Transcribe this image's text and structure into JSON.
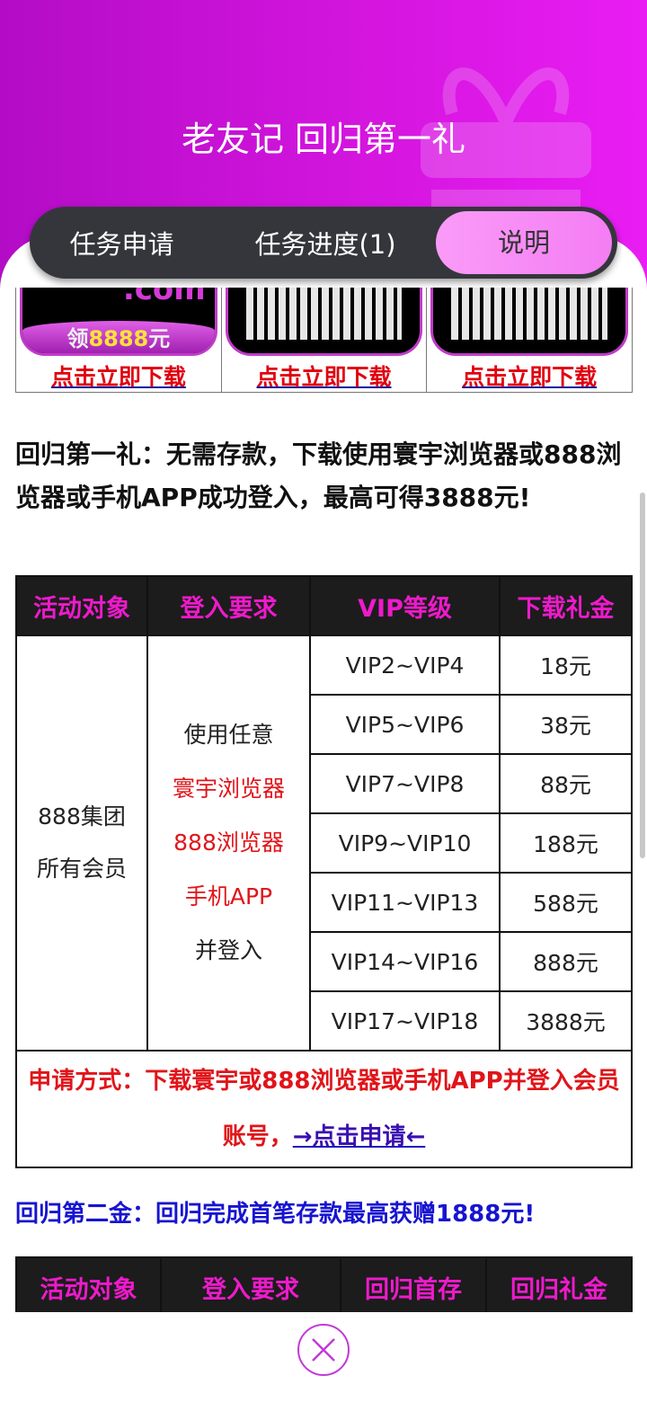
{
  "header": {
    "title": "老友记 回归第一礼"
  },
  "tabs": [
    {
      "label": "任务申请"
    },
    {
      "label": "任务进度(1)"
    },
    {
      "label": "说明",
      "active": true
    }
  ],
  "downloads": [
    {
      "label": "点击立即下载",
      "image_text": "领8888元",
      "image_top": ".com"
    },
    {
      "label": "点击立即下载"
    },
    {
      "label": "点击立即下载"
    }
  ],
  "intro": "回归第一礼：无需存款，下载使用寰宇浏览器或888浏览器或手机APP成功登入，最高可得3888元!",
  "table1": {
    "headers": [
      "活动对象",
      "登入要求",
      "VIP等级",
      "下载礼金"
    ],
    "target": [
      "888集团",
      "所有会员"
    ],
    "requirement": [
      "使用任意",
      "寰宇浏览器",
      "888浏览器",
      "手机APP",
      "并登入"
    ],
    "rows": [
      [
        "VIP2~VIP4",
        "18元"
      ],
      [
        "VIP5~VIP6",
        "38元"
      ],
      [
        "VIP7~VIP8",
        "88元"
      ],
      [
        "VIP9~VIP10",
        "188元"
      ],
      [
        "VIP11~VIP13",
        "588元"
      ],
      [
        "VIP14~VIP16",
        "888元"
      ],
      [
        "VIP17~VIP18",
        "3888元"
      ]
    ],
    "apply_text": "申请方式：下载寰宇或888浏览器或手机APP并登入会员账号，",
    "apply_link": "→点击申请←"
  },
  "second": "回归第二金：回归完成首笔存款最高获赠1888元!",
  "table2": {
    "headers": [
      "活动对象",
      "登入要求",
      "回归首存",
      "回归礼金"
    ]
  },
  "colors": {
    "accent": "#e91df3",
    "tab_active": "#f98ef7",
    "header_text": "#ee1acb",
    "link_red": "#e0000f",
    "blue": "#1714d0"
  }
}
